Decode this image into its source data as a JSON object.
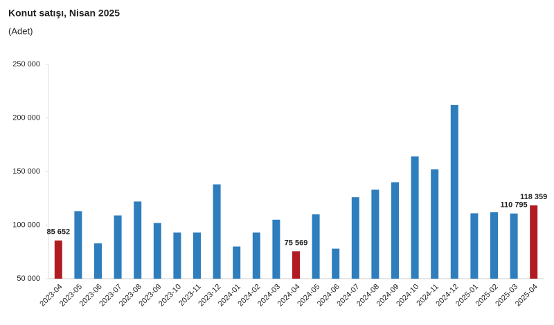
{
  "chart_data": {
    "type": "bar",
    "title": "Konut satışı, Nisan 2025",
    "subtitle": "(Adet)",
    "categories": [
      "2023-04",
      "2023-05",
      "2023-06",
      "2023-07",
      "2023-08",
      "2023-09",
      "2023-10",
      "2023-11",
      "2023-12",
      "2024-01",
      "2024-02",
      "2024-03",
      "2024-04",
      "2024-05",
      "2024-06",
      "2024-07",
      "2024-08",
      "2024-09",
      "2024-10",
      "2024-11",
      "2024-12",
      "2025-01",
      "2025-02",
      "2025-03",
      "2025-04"
    ],
    "values": [
      85652,
      113000,
      83000,
      109000,
      122000,
      102000,
      93000,
      93000,
      138000,
      80000,
      93000,
      105000,
      75569,
      110000,
      78000,
      126000,
      133000,
      140000,
      164000,
      152000,
      212000,
      111000,
      112000,
      110795,
      118359
    ],
    "value_labels": [
      "85 652",
      null,
      null,
      null,
      null,
      null,
      null,
      null,
      null,
      null,
      null,
      null,
      "75 569",
      null,
      null,
      null,
      null,
      null,
      null,
      null,
      null,
      null,
      null,
      "110 795",
      "118 359"
    ],
    "colors": [
      "#b01c22",
      "#2e7dbd",
      "#2e7dbd",
      "#2e7dbd",
      "#2e7dbd",
      "#2e7dbd",
      "#2e7dbd",
      "#2e7dbd",
      "#2e7dbd",
      "#2e7dbd",
      "#2e7dbd",
      "#2e7dbd",
      "#b01c22",
      "#2e7dbd",
      "#2e7dbd",
      "#2e7dbd",
      "#2e7dbd",
      "#2e7dbd",
      "#2e7dbd",
      "#2e7dbd",
      "#2e7dbd",
      "#2e7dbd",
      "#2e7dbd",
      "#2e7dbd",
      "#b01c22"
    ],
    "ylim": [
      50000,
      250000
    ],
    "yticks": [
      {
        "value": 50000,
        "label": "50 000"
      },
      {
        "value": 100000,
        "label": "100 000"
      },
      {
        "value": 150000,
        "label": "150 000"
      },
      {
        "value": 200000,
        "label": "200 000"
      },
      {
        "value": 250000,
        "label": "250 000"
      }
    ],
    "grid": false
  }
}
